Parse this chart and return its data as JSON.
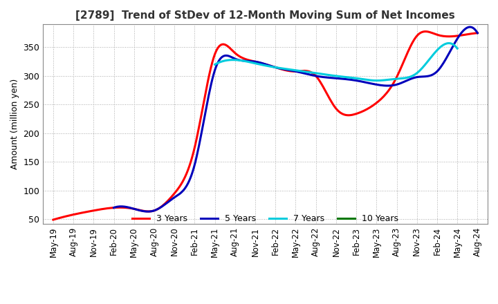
{
  "title": "[2789]  Trend of StDev of 12-Month Moving Sum of Net Incomes",
  "ylabel": "Amount (million yen)",
  "ylim": [
    42,
    390
  ],
  "yticks": [
    50,
    100,
    150,
    200,
    250,
    300,
    350
  ],
  "legend_labels": [
    "3 Years",
    "5 Years",
    "7 Years",
    "10 Years"
  ],
  "legend_colors": [
    "#ff0000",
    "#0000bb",
    "#00ccdd",
    "#007700"
  ],
  "x_labels": [
    "May-19",
    "Aug-19",
    "Nov-19",
    "Feb-20",
    "May-20",
    "Aug-20",
    "Nov-20",
    "Feb-21",
    "May-21",
    "Aug-21",
    "Nov-21",
    "Feb-22",
    "May-22",
    "Aug-22",
    "Nov-22",
    "Feb-23",
    "May-23",
    "Aug-23",
    "Nov-23",
    "Feb-24",
    "May-24",
    "Aug-24"
  ],
  "series_3y_x": [
    0,
    1,
    2,
    3,
    4,
    5,
    6,
    7,
    8,
    9,
    10,
    11,
    12,
    13,
    14,
    15,
    16,
    17,
    18,
    19,
    20,
    21
  ],
  "series_3y_y": [
    49,
    58,
    65,
    70,
    68,
    65,
    95,
    175,
    338,
    340,
    325,
    315,
    308,
    300,
    243,
    234,
    253,
    298,
    370,
    372,
    370,
    375
  ],
  "series_5y_x": [
    3,
    4,
    5,
    6,
    7,
    8,
    9,
    10,
    11,
    12,
    13,
    14,
    15,
    16,
    17,
    18,
    19,
    20,
    21
  ],
  "series_5y_y": [
    70,
    68,
    65,
    88,
    145,
    310,
    330,
    325,
    315,
    308,
    300,
    296,
    292,
    285,
    285,
    298,
    308,
    365,
    375
  ],
  "series_7y_x": [
    8,
    9,
    10,
    11,
    12,
    13,
    14,
    15,
    16,
    17,
    18,
    19,
    20
  ],
  "series_7y_y": [
    320,
    328,
    322,
    315,
    310,
    305,
    300,
    296,
    292,
    295,
    305,
    345,
    348
  ],
  "background_color": "#ffffff",
  "line_width": 2.2,
  "grid_color": "#aaaaaa",
  "grid_style": ":",
  "grid_linewidth": 0.7
}
